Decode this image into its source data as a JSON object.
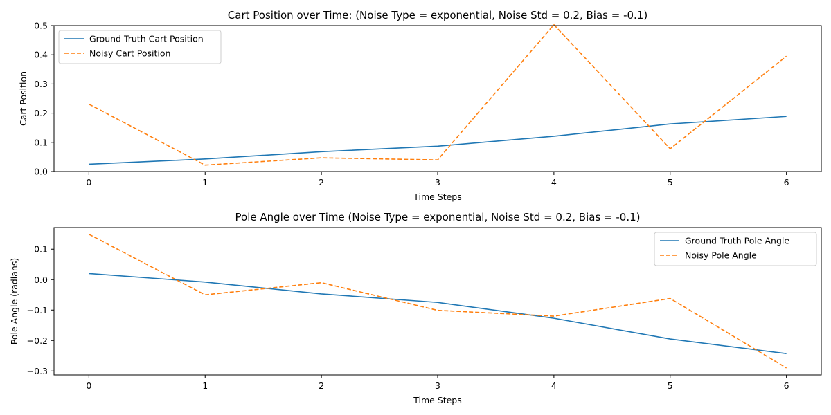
{
  "chart_data": [
    {
      "type": "line",
      "title": "Cart Position over Time: (Noise Type = exponential, Noise Std = 0.2, Bias = -0.1)",
      "xlabel": "Time Steps",
      "ylabel": "Cart Position",
      "xlim": [
        -0.3,
        6.3
      ],
      "ylim": [
        0,
        0.5
      ],
      "xticks": [
        0,
        1,
        2,
        3,
        4,
        5,
        6
      ],
      "xtick_labels": [
        "0",
        "1",
        "2",
        "3",
        "4",
        "5",
        "6"
      ],
      "yticks": [
        0.0,
        0.1,
        0.2,
        0.3,
        0.4,
        0.5
      ],
      "ytick_labels": [
        "0.0",
        "0.1",
        "0.2",
        "0.3",
        "0.4",
        "0.5"
      ],
      "grid": false,
      "legend_position": "upper-left",
      "x": [
        0,
        1,
        2,
        3,
        4,
        5,
        6
      ],
      "series": [
        {
          "name": "Ground Truth Cart Position",
          "values": [
            0.025,
            0.043,
            0.068,
            0.087,
            0.121,
            0.163,
            0.189
          ],
          "color": "#1f77b4",
          "style": "solid"
        },
        {
          "name": "Noisy Cart Position",
          "values": [
            0.231,
            0.022,
            0.047,
            0.04,
            0.503,
            0.078,
            0.395
          ],
          "color": "#ff7f0e",
          "style": "dashed"
        }
      ]
    },
    {
      "type": "line",
      "title": "Pole Angle over Time (Noise Type = exponential, Noise Std = 0.2, Bias = -0.1)",
      "xlabel": "Time Steps",
      "ylabel": "Pole Angle (radians)",
      "xlim": [
        -0.3,
        6.3
      ],
      "ylim": [
        -0.313,
        0.171
      ],
      "xticks": [
        0,
        1,
        2,
        3,
        4,
        5,
        6
      ],
      "xtick_labels": [
        "0",
        "1",
        "2",
        "3",
        "4",
        "5",
        "6"
      ],
      "yticks": [
        -0.3,
        -0.2,
        -0.1,
        0.0,
        0.1
      ],
      "ytick_labels": [
        "−0.3",
        "−0.2",
        "−0.1",
        "0.0",
        "0.1"
      ],
      "grid": false,
      "legend_position": "upper-right",
      "x": [
        0,
        1,
        2,
        3,
        4,
        5,
        6
      ],
      "series": [
        {
          "name": "Ground Truth Pole Angle",
          "values": [
            0.02,
            -0.008,
            -0.047,
            -0.075,
            -0.127,
            -0.195,
            -0.243
          ],
          "color": "#1f77b4",
          "style": "solid"
        },
        {
          "name": "Noisy Pole Angle",
          "values": [
            0.149,
            -0.05,
            -0.01,
            -0.101,
            -0.12,
            -0.062,
            -0.29
          ],
          "color": "#ff7f0e",
          "style": "dashed"
        }
      ]
    }
  ]
}
